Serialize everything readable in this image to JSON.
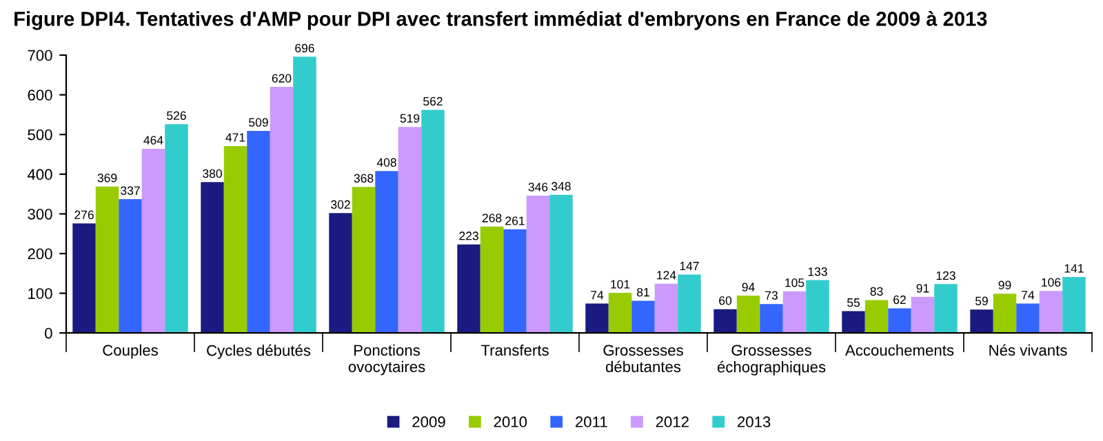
{
  "chart_data": {
    "type": "bar",
    "title": "Figure DPI4. Tentatives d'AMP pour DPI avec transfert immédiat d'embryons en France de 2009 à 2013",
    "categories": [
      "Couples",
      "Cycles débutés",
      "Ponctions\novocytaires",
      "Transferts",
      "Grossesses\ndébutantes",
      "Grossesses\néchographiques",
      "Accouchements",
      "Nés vivants"
    ],
    "series": [
      {
        "name": "2009",
        "color": "#1a1a80",
        "values": [
          276,
          380,
          302,
          223,
          74,
          60,
          55,
          59
        ]
      },
      {
        "name": "2010",
        "color": "#99cc00",
        "values": [
          369,
          471,
          368,
          268,
          101,
          94,
          83,
          99
        ]
      },
      {
        "name": "2011",
        "color": "#3366ff",
        "values": [
          337,
          509,
          408,
          261,
          81,
          73,
          62,
          74
        ]
      },
      {
        "name": "2012",
        "color": "#cc99ff",
        "values": [
          464,
          620,
          519,
          346,
          124,
          105,
          91,
          106
        ]
      },
      {
        "name": "2013",
        "color": "#33cccc",
        "values": [
          526,
          696,
          562,
          348,
          147,
          133,
          123,
          141
        ]
      }
    ],
    "ylim": [
      0,
      700
    ],
    "yticks": [
      0,
      100,
      200,
      300,
      400,
      500,
      600,
      700
    ],
    "data_labels": true,
    "legend": "bottom",
    "grid": false
  }
}
